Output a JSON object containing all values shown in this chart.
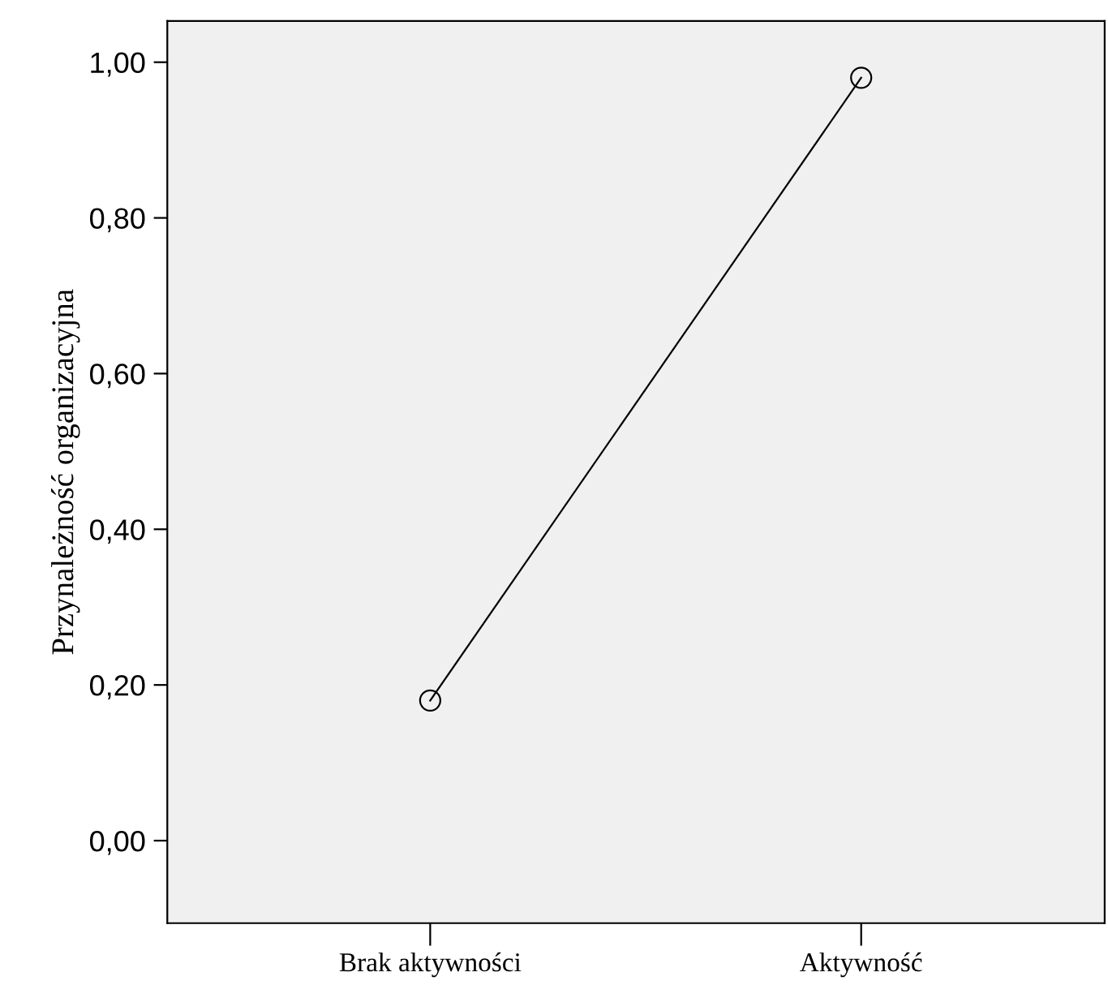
{
  "chart_data": {
    "type": "line",
    "ylabel": "Przynależność organizacyjna",
    "categories": [
      "Brak aktywności",
      "Aktywność"
    ],
    "series": [
      {
        "color": "#000000",
        "values": [
          0.18,
          0.98
        ]
      }
    ],
    "marker": "circle",
    "line_style": "solid",
    "grid": false,
    "legend": false,
    "ylim": [
      -0.106,
      1.053
    ],
    "yticks": [
      {
        "value": 0,
        "label": "0,00"
      },
      {
        "value": 0.2,
        "label": "0,20"
      },
      {
        "value": 0.4,
        "label": "0,40"
      },
      {
        "value": 0.6,
        "label": "0,60"
      },
      {
        "value": 0.8,
        "label": "0,80"
      },
      {
        "value": 1.0,
        "label": "1,00"
      }
    ]
  }
}
